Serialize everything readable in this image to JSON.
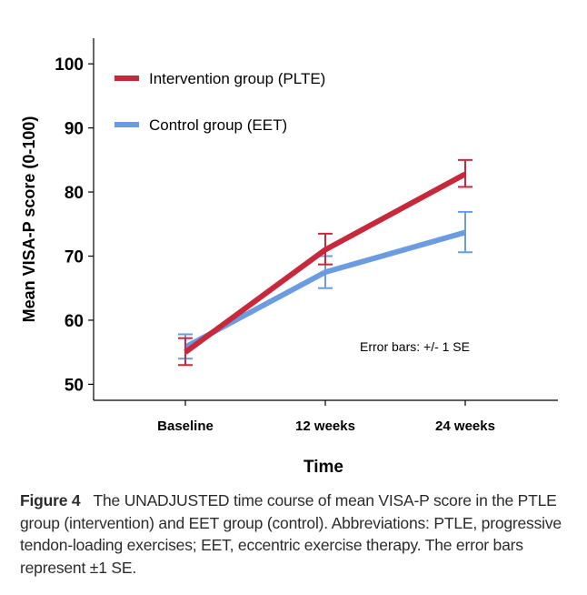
{
  "caption": {
    "label": "Figure 4",
    "text": "The UNADJUSTED time course of mean VISA-P score in the PTLE group (intervention) and EET group (control). Abbreviations: PTLE, progressive tendon-loading exercises; EET, eccentric exercise therapy. The error bars represent ±1 SE."
  },
  "chart_data": {
    "type": "line",
    "xlabel": "Time",
    "ylabel": "Mean VISA-P score (0-100)",
    "categories": [
      "Baseline",
      "12 weeks",
      "24 weeks"
    ],
    "ylim": [
      47.5,
      104
    ],
    "yticks": [
      50,
      60,
      70,
      80,
      90,
      100
    ],
    "grid": false,
    "legend_position": "top-left",
    "annotation": "Error bars: +/- 1 SE",
    "series": [
      {
        "name": "Intervention group (PLTE)",
        "color": "#c8283c",
        "values": [
          55.0,
          71.0,
          82.8
        ],
        "error_low": [
          53.0,
          68.7,
          80.8
        ],
        "error_high": [
          57.2,
          73.5,
          85.0
        ]
      },
      {
        "name": "Control group (EET)",
        "color": "#6b9be0",
        "values": [
          55.8,
          67.5,
          73.7
        ],
        "error_low": [
          54.0,
          65.0,
          70.6
        ],
        "error_high": [
          57.8,
          70.0,
          76.9
        ]
      }
    ]
  }
}
